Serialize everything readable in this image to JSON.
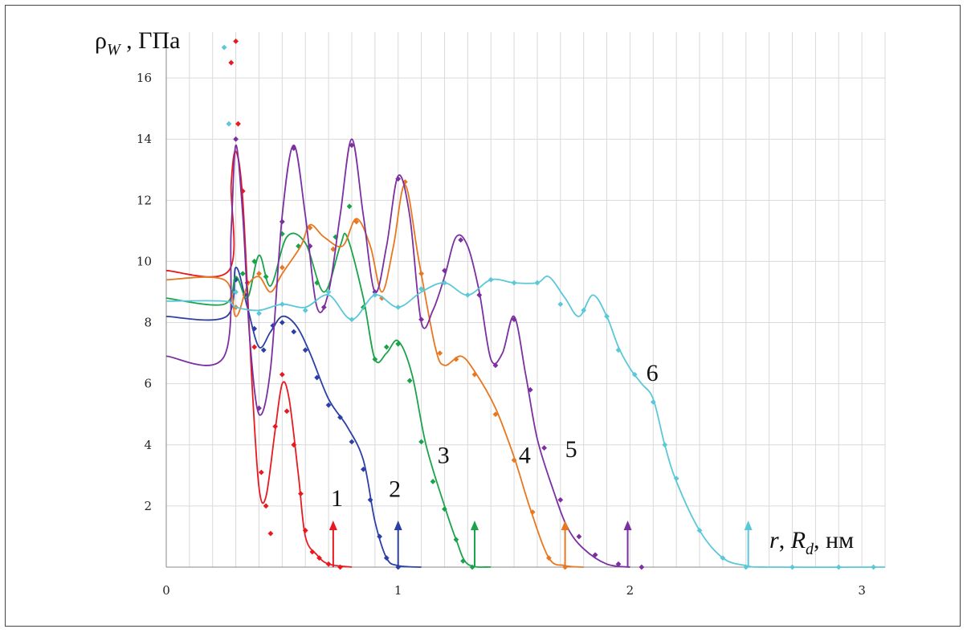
{
  "chart_data": {
    "type": "scatter",
    "title": "",
    "ylabel": {
      "main": "ρ",
      "sub": "W",
      "rest": " , ГПа"
    },
    "xlabel": {
      "r": "r",
      "sep": ", ",
      "R": "R",
      "sub": "d",
      "rest": ", нм"
    },
    "xlim": [
      0,
      3.1
    ],
    "ylim": [
      0,
      17.5
    ],
    "xticks": [
      {
        "v": 0,
        "label": "0"
      },
      {
        "v": 1,
        "label": "1"
      },
      {
        "v": 2,
        "label": "2"
      },
      {
        "v": 3,
        "label": "3"
      }
    ],
    "yticks": [
      {
        "v": 2,
        "label": "2"
      },
      {
        "v": 4,
        "label": "4"
      },
      {
        "v": 6,
        "label": "6"
      },
      {
        "v": 8,
        "label": "8"
      },
      {
        "v": 10,
        "label": "10"
      },
      {
        "v": 12,
        "label": "12"
      },
      {
        "v": 14,
        "label": "14"
      },
      {
        "v": 16,
        "label": "16"
      }
    ],
    "grid": true,
    "series": [
      {
        "label": "1",
        "color": "#e8191f",
        "radius_marker": 0.72,
        "label_pos": [
          0.71,
          2.0
        ],
        "curve": [
          [
            0.0,
            9.7
          ],
          [
            0.27,
            9.7
          ],
          [
            0.28,
            12.5
          ],
          [
            0.3,
            13.6
          ],
          [
            0.33,
            12.0
          ],
          [
            0.37,
            6.0
          ],
          [
            0.4,
            2.6
          ],
          [
            0.43,
            2.3
          ],
          [
            0.47,
            4.5
          ],
          [
            0.5,
            6.0
          ],
          [
            0.53,
            5.5
          ],
          [
            0.57,
            3.0
          ],
          [
            0.6,
            1.0
          ],
          [
            0.65,
            0.4
          ],
          [
            0.7,
            0.1
          ],
          [
            0.8,
            0.0
          ]
        ],
        "points": [
          [
            0.28,
            16.5
          ],
          [
            0.3,
            17.2
          ],
          [
            0.31,
            14.5
          ],
          [
            0.33,
            12.3
          ],
          [
            0.35,
            9.3
          ],
          [
            0.38,
            7.2
          ],
          [
            0.41,
            3.1
          ],
          [
            0.43,
            2.0
          ],
          [
            0.45,
            1.1
          ],
          [
            0.47,
            4.6
          ],
          [
            0.5,
            6.3
          ],
          [
            0.52,
            5.1
          ],
          [
            0.55,
            4.0
          ],
          [
            0.58,
            2.4
          ],
          [
            0.6,
            1.2
          ],
          [
            0.63,
            0.5
          ],
          [
            0.66,
            0.3
          ],
          [
            0.7,
            0.1
          ],
          [
            0.75,
            0.0
          ]
        ]
      },
      {
        "label": "2",
        "color": "#2b3fa6",
        "radius_marker": 1.0,
        "label_pos": [
          0.96,
          2.3
        ],
        "curve": [
          [
            0.0,
            8.2
          ],
          [
            0.26,
            8.2
          ],
          [
            0.3,
            9.8
          ],
          [
            0.35,
            8.5
          ],
          [
            0.4,
            7.2
          ],
          [
            0.45,
            7.7
          ],
          [
            0.5,
            8.2
          ],
          [
            0.56,
            7.9
          ],
          [
            0.62,
            7.0
          ],
          [
            0.7,
            5.5
          ],
          [
            0.78,
            4.6
          ],
          [
            0.85,
            3.5
          ],
          [
            0.9,
            1.5
          ],
          [
            0.95,
            0.3
          ],
          [
            1.0,
            0.05
          ],
          [
            1.1,
            0.0
          ]
        ],
        "points": [
          [
            0.3,
            9.4
          ],
          [
            0.34,
            8.9
          ],
          [
            0.38,
            7.8
          ],
          [
            0.42,
            7.1
          ],
          [
            0.46,
            7.9
          ],
          [
            0.5,
            8.0
          ],
          [
            0.55,
            7.7
          ],
          [
            0.6,
            7.1
          ],
          [
            0.65,
            6.2
          ],
          [
            0.7,
            5.3
          ],
          [
            0.75,
            4.9
          ],
          [
            0.8,
            4.1
          ],
          [
            0.85,
            3.2
          ],
          [
            0.88,
            2.2
          ],
          [
            0.92,
            1.0
          ],
          [
            0.95,
            0.3
          ],
          [
            1.0,
            0.0
          ]
        ]
      },
      {
        "label": "3",
        "color": "#1aa34a",
        "radius_marker": 1.33,
        "label_pos": [
          1.17,
          3.4
        ],
        "curve": [
          [
            0.0,
            8.8
          ],
          [
            0.25,
            8.6
          ],
          [
            0.3,
            9.5
          ],
          [
            0.35,
            8.8
          ],
          [
            0.4,
            10.2
          ],
          [
            0.45,
            9.2
          ],
          [
            0.52,
            10.8
          ],
          [
            0.6,
            10.6
          ],
          [
            0.68,
            9.0
          ],
          [
            0.75,
            10.5
          ],
          [
            0.78,
            10.8
          ],
          [
            0.85,
            8.8
          ],
          [
            0.9,
            6.8
          ],
          [
            0.95,
            7.0
          ],
          [
            1.0,
            7.4
          ],
          [
            1.06,
            6.3
          ],
          [
            1.12,
            4.0
          ],
          [
            1.2,
            2.0
          ],
          [
            1.25,
            0.9
          ],
          [
            1.3,
            0.1
          ],
          [
            1.4,
            0.0
          ]
        ],
        "points": [
          [
            0.33,
            9.6
          ],
          [
            0.38,
            10.0
          ],
          [
            0.43,
            9.5
          ],
          [
            0.5,
            10.9
          ],
          [
            0.57,
            10.5
          ],
          [
            0.65,
            9.3
          ],
          [
            0.73,
            10.8
          ],
          [
            0.79,
            11.8
          ],
          [
            0.85,
            8.5
          ],
          [
            0.9,
            6.8
          ],
          [
            0.95,
            7.2
          ],
          [
            1.0,
            7.3
          ],
          [
            1.05,
            6.1
          ],
          [
            1.1,
            4.1
          ],
          [
            1.15,
            2.8
          ],
          [
            1.2,
            1.9
          ],
          [
            1.25,
            0.9
          ],
          [
            1.28,
            0.2
          ],
          [
            1.32,
            0.0
          ]
        ]
      },
      {
        "label": "4",
        "color": "#e8771f",
        "radius_marker": 1.72,
        "label_pos": [
          1.52,
          3.4
        ],
        "curve": [
          [
            0.0,
            9.4
          ],
          [
            0.25,
            9.4
          ],
          [
            0.3,
            8.2
          ],
          [
            0.35,
            9.2
          ],
          [
            0.4,
            9.5
          ],
          [
            0.45,
            9.0
          ],
          [
            0.5,
            9.6
          ],
          [
            0.58,
            10.5
          ],
          [
            0.62,
            11.2
          ],
          [
            0.68,
            10.8
          ],
          [
            0.76,
            10.5
          ],
          [
            0.82,
            11.4
          ],
          [
            0.88,
            10.5
          ],
          [
            0.93,
            9.0
          ],
          [
            0.98,
            10.5
          ],
          [
            1.03,
            12.5
          ],
          [
            1.09,
            10.0
          ],
          [
            1.16,
            7.2
          ],
          [
            1.2,
            6.6
          ],
          [
            1.27,
            6.9
          ],
          [
            1.33,
            6.4
          ],
          [
            1.42,
            5.2
          ],
          [
            1.5,
            3.6
          ],
          [
            1.57,
            1.9
          ],
          [
            1.65,
            0.3
          ],
          [
            1.72,
            0.05
          ],
          [
            1.8,
            0.0
          ]
        ],
        "points": [
          [
            0.3,
            8.5
          ],
          [
            0.4,
            9.6
          ],
          [
            0.5,
            9.8
          ],
          [
            0.62,
            11.1
          ],
          [
            0.72,
            10.4
          ],
          [
            0.82,
            11.3
          ],
          [
            0.93,
            8.8
          ],
          [
            1.03,
            12.6
          ],
          [
            1.1,
            9.6
          ],
          [
            1.18,
            7.0
          ],
          [
            1.25,
            6.8
          ],
          [
            1.33,
            6.3
          ],
          [
            1.42,
            5.0
          ],
          [
            1.5,
            3.5
          ],
          [
            1.58,
            1.8
          ],
          [
            1.65,
            0.3
          ],
          [
            1.72,
            0.0
          ]
        ]
      },
      {
        "label": "5",
        "color": "#7b2fa0",
        "radius_marker": 1.99,
        "label_pos": [
          1.72,
          3.6
        ],
        "curve": [
          [
            0.0,
            6.9
          ],
          [
            0.25,
            6.9
          ],
          [
            0.28,
            11.0
          ],
          [
            0.3,
            13.8
          ],
          [
            0.33,
            11.5
          ],
          [
            0.36,
            7.5
          ],
          [
            0.4,
            5.0
          ],
          [
            0.45,
            6.5
          ],
          [
            0.5,
            11.5
          ],
          [
            0.55,
            13.8
          ],
          [
            0.6,
            11.5
          ],
          [
            0.65,
            8.5
          ],
          [
            0.7,
            9.0
          ],
          [
            0.75,
            11.5
          ],
          [
            0.8,
            14.0
          ],
          [
            0.85,
            11.5
          ],
          [
            0.9,
            9.0
          ],
          [
            0.95,
            10.5
          ],
          [
            1.0,
            12.8
          ],
          [
            1.05,
            11.5
          ],
          [
            1.1,
            8.0
          ],
          [
            1.15,
            8.4
          ],
          [
            1.2,
            9.5
          ],
          [
            1.25,
            10.8
          ],
          [
            1.3,
            10.5
          ],
          [
            1.35,
            9.0
          ],
          [
            1.4,
            6.8
          ],
          [
            1.45,
            7.0
          ],
          [
            1.5,
            8.2
          ],
          [
            1.55,
            6.3
          ],
          [
            1.6,
            4.2
          ],
          [
            1.67,
            2.5
          ],
          [
            1.73,
            1.3
          ],
          [
            1.8,
            0.6
          ],
          [
            1.9,
            0.1
          ],
          [
            2.0,
            0.0
          ]
        ],
        "points": [
          [
            0.3,
            14.0
          ],
          [
            0.4,
            5.2
          ],
          [
            0.5,
            11.3
          ],
          [
            0.55,
            13.7
          ],
          [
            0.62,
            10.5
          ],
          [
            0.68,
            8.5
          ],
          [
            0.8,
            13.8
          ],
          [
            0.9,
            9.0
          ],
          [
            1.0,
            12.7
          ],
          [
            1.1,
            8.1
          ],
          [
            1.2,
            9.7
          ],
          [
            1.27,
            10.7
          ],
          [
            1.35,
            8.9
          ],
          [
            1.42,
            6.6
          ],
          [
            1.5,
            8.1
          ],
          [
            1.57,
            5.8
          ],
          [
            1.63,
            3.9
          ],
          [
            1.7,
            2.2
          ],
          [
            1.78,
            1.0
          ],
          [
            1.85,
            0.4
          ],
          [
            1.95,
            0.1
          ],
          [
            2.05,
            0.0
          ]
        ]
      },
      {
        "label": "6",
        "color": "#5bc8d8",
        "radius_marker": 2.51,
        "label_pos": [
          2.07,
          6.1
        ],
        "curve": [
          [
            0.0,
            8.7
          ],
          [
            0.25,
            8.7
          ],
          [
            0.3,
            8.5
          ],
          [
            0.4,
            8.4
          ],
          [
            0.5,
            8.6
          ],
          [
            0.6,
            8.5
          ],
          [
            0.7,
            8.9
          ],
          [
            0.8,
            8.1
          ],
          [
            0.9,
            8.9
          ],
          [
            1.0,
            8.5
          ],
          [
            1.1,
            9.0
          ],
          [
            1.2,
            9.3
          ],
          [
            1.3,
            8.9
          ],
          [
            1.4,
            9.4
          ],
          [
            1.5,
            9.3
          ],
          [
            1.6,
            9.3
          ],
          [
            1.65,
            9.5
          ],
          [
            1.72,
            8.8
          ],
          [
            1.78,
            8.2
          ],
          [
            1.84,
            8.9
          ],
          [
            1.9,
            8.2
          ],
          [
            1.95,
            7.2
          ],
          [
            2.0,
            6.5
          ],
          [
            2.05,
            6.0
          ],
          [
            2.1,
            5.5
          ],
          [
            2.15,
            4.0
          ],
          [
            2.2,
            2.8
          ],
          [
            2.3,
            1.2
          ],
          [
            2.4,
            0.3
          ],
          [
            2.5,
            0.05
          ],
          [
            2.6,
            0.0
          ],
          [
            3.1,
            0.0
          ]
        ],
        "points": [
          [
            0.25,
            17.0
          ],
          [
            0.27,
            14.5
          ],
          [
            0.3,
            9.0
          ],
          [
            0.4,
            8.3
          ],
          [
            0.5,
            8.6
          ],
          [
            0.6,
            8.4
          ],
          [
            0.7,
            9.0
          ],
          [
            0.8,
            8.1
          ],
          [
            0.9,
            8.9
          ],
          [
            1.0,
            8.5
          ],
          [
            1.1,
            9.1
          ],
          [
            1.2,
            9.3
          ],
          [
            1.3,
            8.9
          ],
          [
            1.4,
            9.4
          ],
          [
            1.5,
            9.3
          ],
          [
            1.6,
            9.3
          ],
          [
            1.7,
            8.6
          ],
          [
            1.8,
            8.4
          ],
          [
            1.9,
            8.2
          ],
          [
            1.95,
            7.1
          ],
          [
            2.02,
            6.3
          ],
          [
            2.1,
            5.4
          ],
          [
            2.15,
            4.0
          ],
          [
            2.2,
            2.9
          ],
          [
            2.3,
            1.2
          ],
          [
            2.4,
            0.3
          ],
          [
            2.5,
            0.0
          ],
          [
            2.7,
            0.0
          ],
          [
            2.9,
            0.0
          ],
          [
            3.05,
            0.0
          ]
        ]
      }
    ]
  }
}
